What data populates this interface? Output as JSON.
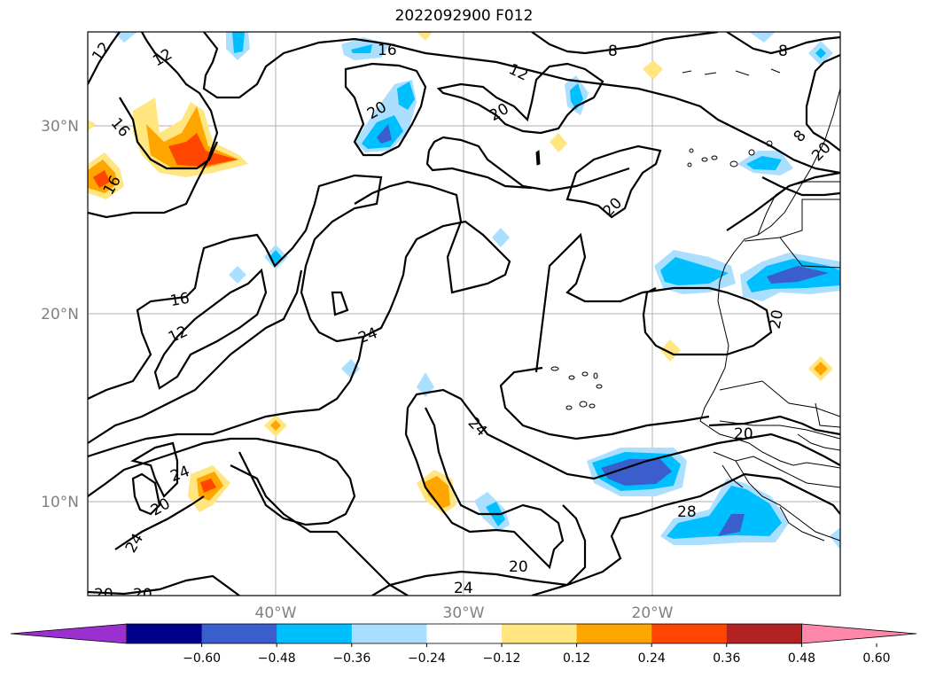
{
  "title": "2022092900 F012",
  "axes": {
    "lat_labels": [
      "30°N",
      "20°N",
      "10°N"
    ],
    "lon_labels": [
      "40°W",
      "30°W",
      "20°W"
    ],
    "extent": {
      "lon_min": -50,
      "lon_max": -10,
      "lat_min": 5,
      "lat_max": 35
    }
  },
  "colorbar": {
    "ticks": [
      "−0.60",
      "−0.48",
      "−0.36",
      "−0.24",
      "−0.12",
      "0.12",
      "0.24",
      "0.36",
      "0.48",
      "0.60"
    ],
    "colors": [
      "#9b30d0",
      "#00008b",
      "#3a5fcd",
      "#00bfff",
      "#aadfff",
      "#ffffff",
      "#ffe680",
      "#ffa500",
      "#ff4500",
      "#b22222",
      "#ff88aa"
    ],
    "extend": "both"
  },
  "contour_labels": [
    "12",
    "12",
    "16",
    "16",
    "16",
    "16",
    "12",
    "12",
    "8",
    "8",
    "8",
    "20",
    "20",
    "20",
    "20",
    "20",
    "20",
    "24",
    "24",
    "24",
    "24",
    "24",
    "20",
    "20",
    "20",
    "28",
    "20"
  ]
}
